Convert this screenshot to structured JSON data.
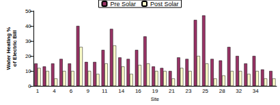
{
  "chart_data": {
    "type": "bar",
    "x_label": "Site",
    "y_label": "Water Heating %\nof Electric Bill",
    "categories": [
      "1",
      null,
      "4",
      null,
      "6",
      null,
      "9",
      null,
      "11",
      null,
      "14",
      null,
      "16",
      null,
      "19",
      null,
      "21",
      null,
      "23",
      null,
      "25",
      null,
      "28",
      null,
      "32",
      null,
      "34",
      null,
      null
    ],
    "series": [
      {
        "name": "Pre Solar",
        "color": "#993366",
        "values": [
          15,
          13,
          15,
          18,
          15,
          40,
          16,
          16,
          24,
          38,
          19,
          18,
          24,
          33,
          13,
          12,
          10,
          19,
          18,
          44,
          47,
          18,
          17,
          26,
          20,
          15,
          20,
          11,
          10
        ]
      },
      {
        "name": "Post Solar",
        "color": "#ffffcc",
        "values": [
          12,
          10,
          5,
          10,
          10,
          26,
          10,
          8,
          15,
          27,
          13,
          8,
          14,
          15,
          10,
          10,
          5,
          12,
          10,
          20,
          15,
          5,
          7,
          10,
          10,
          8,
          10,
          5,
          5
        ]
      }
    ],
    "ylim": [
      0,
      50
    ],
    "yticks": [
      0,
      10,
      20,
      30,
      40,
      50
    ],
    "grid": false,
    "legend": "top"
  }
}
